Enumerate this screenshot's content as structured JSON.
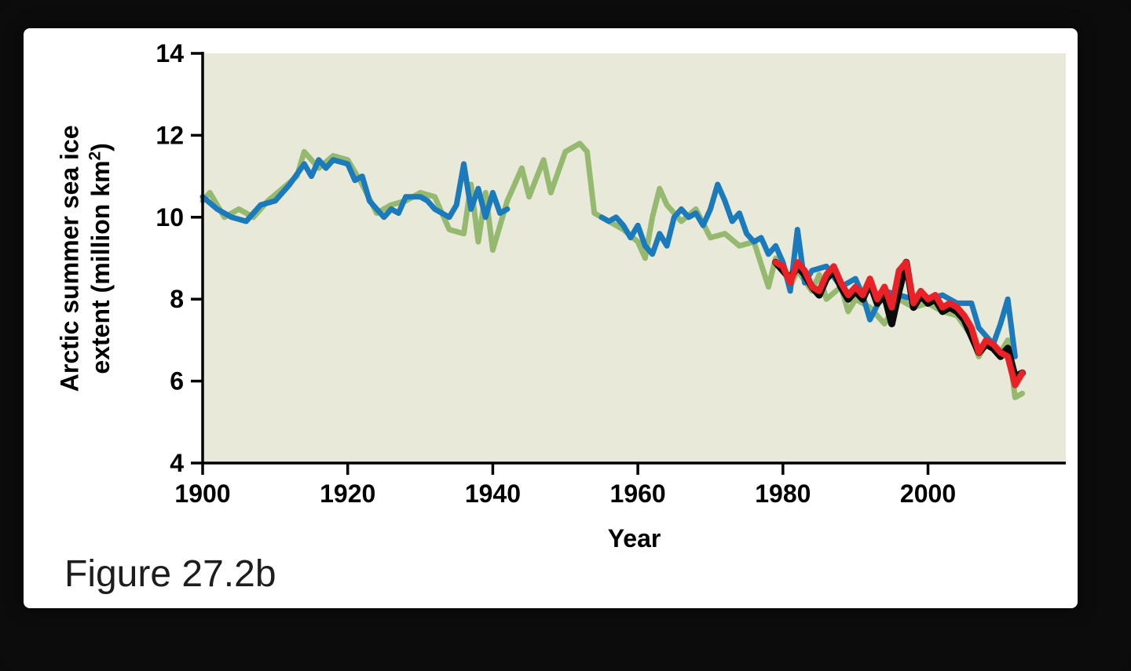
{
  "figure": {
    "caption": "Figure 27.2b"
  },
  "chart_data": {
    "type": "line",
    "title": "",
    "xlabel": "Year",
    "ylabel": "Arctic summer sea ice extent (million km²)",
    "ylabel_line1": "Arctic summer sea ice",
    "ylabel_line2_pre": "extent (million km",
    "ylabel_sup": "2",
    "ylabel_line2_post": ")",
    "xlim": [
      1900,
      2019
    ],
    "ylim": [
      4,
      14
    ],
    "x_ticks": [
      1900,
      1920,
      1940,
      1960,
      1980,
      2000
    ],
    "y_ticks": [
      4,
      6,
      8,
      10,
      12,
      14
    ],
    "plot_bg": "#e9e9da",
    "grid": false,
    "legend": "none",
    "axis_color": "#000000",
    "series": [
      {
        "name": "green",
        "color": "#95b96f",
        "width": 7,
        "x": [
          1900,
          1901,
          1903,
          1905,
          1907,
          1909,
          1911,
          1913,
          1914,
          1916,
          1918,
          1920,
          1922,
          1924,
          1926,
          1928,
          1930,
          1932,
          1934,
          1936,
          1937,
          1938,
          1939,
          1940,
          1942,
          1944,
          1945,
          1947,
          1948,
          1950,
          1952,
          1953,
          1954,
          1956,
          1958,
          1960,
          1961,
          1962,
          1963,
          1964,
          1966,
          1968,
          1970,
          1972,
          1974,
          1976,
          1978,
          1979,
          1980,
          1981,
          1982,
          1984,
          1985,
          1986,
          1988,
          1989,
          1990,
          1992,
          1994,
          1996,
          1998,
          2000,
          2002,
          2004,
          2006,
          2007,
          2008,
          2010,
          2011,
          2012,
          2013
        ],
        "values": [
          10.4,
          10.6,
          10.0,
          10.2,
          10.0,
          10.4,
          10.7,
          11.0,
          11.6,
          11.2,
          11.5,
          11.4,
          10.8,
          10.1,
          10.3,
          10.4,
          10.6,
          10.5,
          9.7,
          9.6,
          10.8,
          9.4,
          10.6,
          9.2,
          10.4,
          11.2,
          10.5,
          11.4,
          10.6,
          11.6,
          11.8,
          11.6,
          10.1,
          9.9,
          9.7,
          9.4,
          9.0,
          10.0,
          10.7,
          10.3,
          9.9,
          10.2,
          9.5,
          9.6,
          9.3,
          9.4,
          8.3,
          9.0,
          8.9,
          8.3,
          8.7,
          8.2,
          8.6,
          8.0,
          8.3,
          7.7,
          8.0,
          7.8,
          7.4,
          8.0,
          7.8,
          7.9,
          7.7,
          7.6,
          7.1,
          6.6,
          6.9,
          6.7,
          7.0,
          5.6,
          5.7
        ]
      },
      {
        "name": "blue",
        "color": "#1a7abc",
        "width": 7,
        "x": [
          1900,
          1902,
          1904,
          1906,
          1908,
          1910,
          1912,
          1914,
          1915,
          1916,
          1917,
          1918,
          1920,
          1921,
          1922,
          1923,
          1924,
          1925,
          1926,
          1927,
          1928,
          1930,
          1931,
          1932,
          1934,
          1935,
          1936,
          1937,
          1938,
          1939,
          1940,
          1941,
          1942,
          1948,
          1955,
          1956,
          1957,
          1958,
          1959,
          1960,
          1961,
          1962,
          1963,
          1964,
          1965,
          1966,
          1967,
          1968,
          1969,
          1970,
          1971,
          1972,
          1973,
          1974,
          1975,
          1976,
          1977,
          1978,
          1979,
          1980,
          1981,
          1982,
          1983,
          1984,
          1986,
          1988,
          1990,
          1991,
          1992,
          1994,
          1996,
          1998,
          2000,
          2002,
          2004,
          2006,
          2007,
          2008,
          2009,
          2010,
          2011,
          2012
        ],
        "values": [
          10.5,
          10.2,
          10.0,
          9.9,
          10.3,
          10.4,
          10.8,
          11.3,
          11.0,
          11.4,
          11.2,
          11.4,
          11.3,
          10.9,
          11.0,
          10.4,
          10.2,
          10.0,
          10.2,
          10.1,
          10.5,
          10.5,
          10.4,
          10.2,
          10.0,
          10.3,
          11.3,
          10.2,
          10.7,
          10.0,
          10.6,
          10.1,
          10.2,
          null,
          10.0,
          9.9,
          10.0,
          9.8,
          9.5,
          9.8,
          9.3,
          9.1,
          9.6,
          9.3,
          10.0,
          10.2,
          10.0,
          10.1,
          9.8,
          10.2,
          10.8,
          10.4,
          9.9,
          10.1,
          9.6,
          9.4,
          9.5,
          9.1,
          9.3,
          8.9,
          8.2,
          9.7,
          8.4,
          8.7,
          8.8,
          8.3,
          8.5,
          8.1,
          7.5,
          8.2,
          8.1,
          8.0,
          8.0,
          8.1,
          7.9,
          7.9,
          7.3,
          7.1,
          6.9,
          7.4,
          8.0,
          6.6
        ]
      },
      {
        "name": "black",
        "color": "#0b0b0b",
        "width": 9,
        "x": [
          1979,
          1980,
          1981,
          1982,
          1983,
          1984,
          1985,
          1986,
          1987,
          1988,
          1989,
          1990,
          1991,
          1992,
          1993,
          1994,
          1995,
          1996,
          1997,
          1998,
          1999,
          2000,
          2001,
          2002,
          2003,
          2004,
          2005,
          2006,
          2007,
          2008,
          2009,
          2010,
          2011,
          2012,
          2013
        ],
        "values": [
          8.9,
          8.7,
          8.5,
          8.8,
          8.6,
          8.3,
          8.1,
          8.5,
          8.7,
          8.3,
          8.0,
          8.2,
          8.0,
          8.4,
          7.9,
          8.1,
          7.4,
          8.2,
          8.9,
          7.8,
          8.1,
          7.9,
          8.0,
          7.7,
          7.8,
          7.7,
          7.5,
          7.1,
          6.7,
          6.9,
          6.8,
          6.6,
          6.8,
          6.1,
          6.2
        ]
      },
      {
        "name": "red",
        "color": "#ea2127",
        "width": 8,
        "x": [
          1979,
          1980,
          1981,
          1982,
          1983,
          1984,
          1985,
          1986,
          1987,
          1988,
          1989,
          1990,
          1991,
          1992,
          1993,
          1994,
          1995,
          1996,
          1997,
          1998,
          1999,
          2000,
          2001,
          2002,
          2003,
          2004,
          2005,
          2006,
          2007,
          2008,
          2009,
          2010,
          2011,
          2012,
          2013
        ],
        "values": [
          8.9,
          8.8,
          8.4,
          8.9,
          8.7,
          8.3,
          8.2,
          8.6,
          8.8,
          8.4,
          8.1,
          8.3,
          8.1,
          8.5,
          8.0,
          8.3,
          7.8,
          8.7,
          8.9,
          7.9,
          8.2,
          8.0,
          8.1,
          7.8,
          7.9,
          7.8,
          7.6,
          7.3,
          6.7,
          7.0,
          6.9,
          6.7,
          6.6,
          5.9,
          6.2
        ]
      }
    ]
  }
}
